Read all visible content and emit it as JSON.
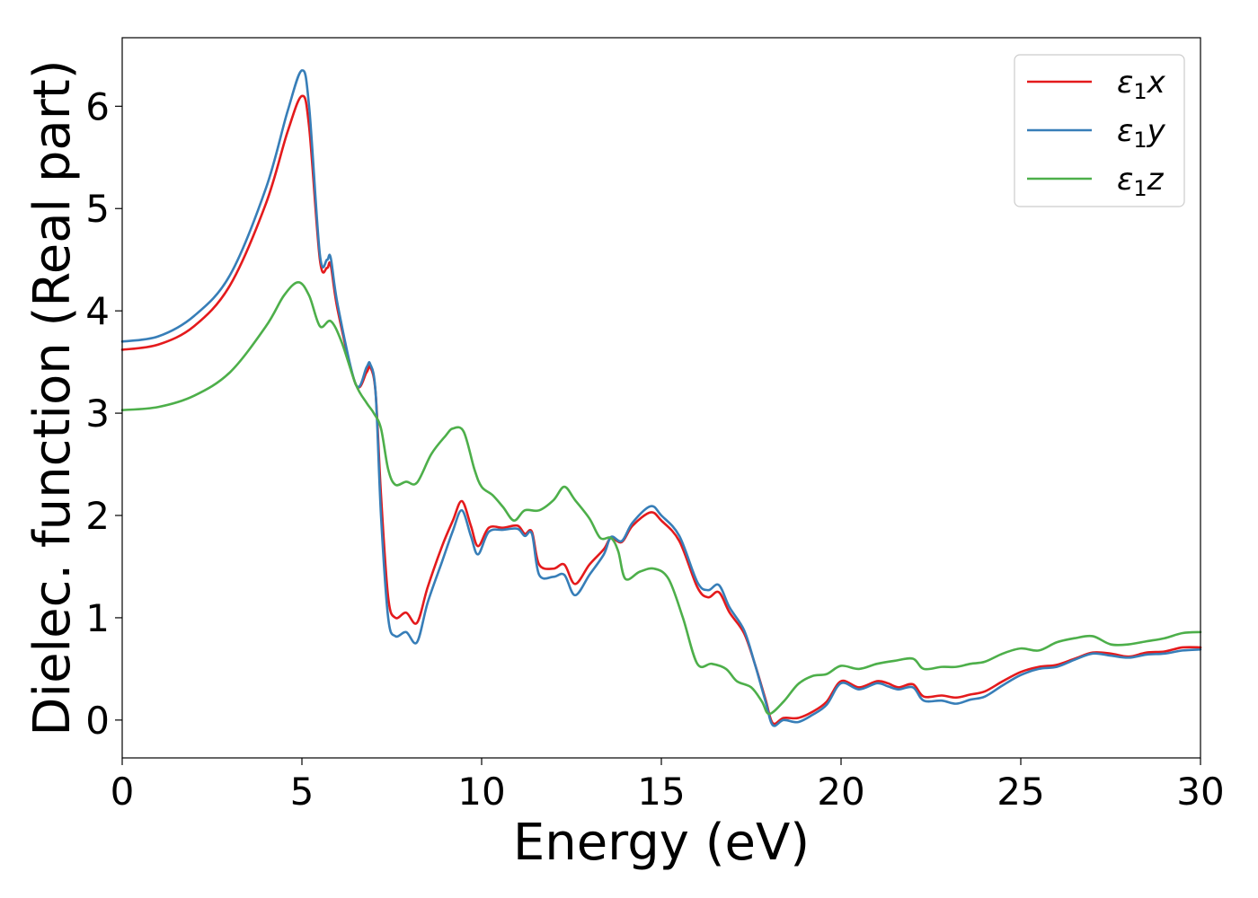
{
  "chart_data": {
    "type": "line",
    "title": "",
    "xlabel": "Energy (eV)",
    "ylabel": "Dielec. function (Real part)",
    "xlim": [
      0,
      30
    ],
    "ylim": [
      -0.37,
      6.67
    ],
    "xticks": [
      0,
      5,
      10,
      15,
      20,
      25,
      30
    ],
    "yticks": [
      0,
      1,
      2,
      3,
      4,
      5,
      6
    ],
    "xtick_labels": [
      "0",
      "5",
      "10",
      "15",
      "20",
      "25",
      "30"
    ],
    "ytick_labels": [
      "0",
      "1",
      "2",
      "3",
      "4",
      "5",
      "6"
    ],
    "grid": false,
    "legend_position": "top-right",
    "series": [
      {
        "name": "ε₁x",
        "legend_base": "ε",
        "legend_sub": "1",
        "legend_var": "x",
        "color": "#e41a1c",
        "points": [
          [
            0,
            3.62
          ],
          [
            1,
            3.67
          ],
          [
            2,
            3.85
          ],
          [
            3,
            4.25
          ],
          [
            4,
            5.05
          ],
          [
            4.6,
            5.75
          ],
          [
            5,
            6.1
          ],
          [
            5.2,
            5.8
          ],
          [
            5.5,
            4.5
          ],
          [
            5.7,
            4.42
          ],
          [
            5.8,
            4.45
          ],
          [
            6,
            4.0
          ],
          [
            6.5,
            3.28
          ],
          [
            6.8,
            3.4
          ],
          [
            6.9,
            3.45
          ],
          [
            7.05,
            3.2
          ],
          [
            7.2,
            2.2
          ],
          [
            7.4,
            1.2
          ],
          [
            7.6,
            1.0
          ],
          [
            7.9,
            1.05
          ],
          [
            8.2,
            0.95
          ],
          [
            8.5,
            1.3
          ],
          [
            8.9,
            1.7
          ],
          [
            9.2,
            1.95
          ],
          [
            9.45,
            2.14
          ],
          [
            9.7,
            1.9
          ],
          [
            9.9,
            1.7
          ],
          [
            10.2,
            1.88
          ],
          [
            10.6,
            1.88
          ],
          [
            11,
            1.9
          ],
          [
            11.2,
            1.82
          ],
          [
            11.4,
            1.84
          ],
          [
            11.6,
            1.52
          ],
          [
            12,
            1.48
          ],
          [
            12.3,
            1.52
          ],
          [
            12.6,
            1.33
          ],
          [
            13,
            1.52
          ],
          [
            13.4,
            1.67
          ],
          [
            13.6,
            1.78
          ],
          [
            13.9,
            1.74
          ],
          [
            14.2,
            1.9
          ],
          [
            14.7,
            2.03
          ],
          [
            15,
            1.95
          ],
          [
            15.5,
            1.75
          ],
          [
            16,
            1.3
          ],
          [
            16.3,
            1.2
          ],
          [
            16.6,
            1.25
          ],
          [
            16.9,
            1.05
          ],
          [
            17.3,
            0.85
          ],
          [
            17.6,
            0.55
          ],
          [
            17.9,
            0.2
          ],
          [
            18.1,
            -0.03
          ],
          [
            18.4,
            0.02
          ],
          [
            18.8,
            0.02
          ],
          [
            19.2,
            0.08
          ],
          [
            19.6,
            0.18
          ],
          [
            20,
            0.38
          ],
          [
            20.5,
            0.32
          ],
          [
            21,
            0.38
          ],
          [
            21.3,
            0.36
          ],
          [
            21.6,
            0.32
          ],
          [
            22,
            0.35
          ],
          [
            22.3,
            0.23
          ],
          [
            22.8,
            0.24
          ],
          [
            23.2,
            0.22
          ],
          [
            23.6,
            0.25
          ],
          [
            24,
            0.28
          ],
          [
            24.5,
            0.38
          ],
          [
            25,
            0.47
          ],
          [
            25.5,
            0.52
          ],
          [
            26,
            0.54
          ],
          [
            26.5,
            0.6
          ],
          [
            27,
            0.66
          ],
          [
            27.5,
            0.65
          ],
          [
            28,
            0.62
          ],
          [
            28.5,
            0.66
          ],
          [
            29,
            0.67
          ],
          [
            29.5,
            0.71
          ],
          [
            30,
            0.71
          ]
        ]
      },
      {
        "name": "ε₁y",
        "legend_base": "ε",
        "legend_sub": "1",
        "legend_var": "y",
        "color": "#377eb8",
        "points": [
          [
            0,
            3.7
          ],
          [
            1,
            3.75
          ],
          [
            2,
            3.95
          ],
          [
            3,
            4.35
          ],
          [
            4,
            5.2
          ],
          [
            4.6,
            5.95
          ],
          [
            5,
            6.35
          ],
          [
            5.2,
            6.0
          ],
          [
            5.5,
            4.55
          ],
          [
            5.7,
            4.5
          ],
          [
            5.8,
            4.52
          ],
          [
            6,
            4.05
          ],
          [
            6.5,
            3.28
          ],
          [
            6.8,
            3.45
          ],
          [
            6.9,
            3.48
          ],
          [
            7.05,
            3.2
          ],
          [
            7.2,
            2.0
          ],
          [
            7.4,
            1.0
          ],
          [
            7.6,
            0.82
          ],
          [
            7.9,
            0.86
          ],
          [
            8.2,
            0.76
          ],
          [
            8.5,
            1.15
          ],
          [
            8.9,
            1.55
          ],
          [
            9.2,
            1.85
          ],
          [
            9.45,
            2.05
          ],
          [
            9.7,
            1.8
          ],
          [
            9.9,
            1.62
          ],
          [
            10.2,
            1.84
          ],
          [
            10.6,
            1.86
          ],
          [
            11,
            1.87
          ],
          [
            11.2,
            1.8
          ],
          [
            11.4,
            1.82
          ],
          [
            11.6,
            1.42
          ],
          [
            12,
            1.4
          ],
          [
            12.3,
            1.42
          ],
          [
            12.6,
            1.22
          ],
          [
            13,
            1.42
          ],
          [
            13.4,
            1.62
          ],
          [
            13.6,
            1.79
          ],
          [
            13.9,
            1.75
          ],
          [
            14.2,
            1.93
          ],
          [
            14.7,
            2.09
          ],
          [
            15,
            2.0
          ],
          [
            15.5,
            1.8
          ],
          [
            16,
            1.35
          ],
          [
            16.3,
            1.27
          ],
          [
            16.6,
            1.32
          ],
          [
            16.9,
            1.1
          ],
          [
            17.3,
            0.88
          ],
          [
            17.6,
            0.55
          ],
          [
            17.9,
            0.18
          ],
          [
            18.1,
            -0.05
          ],
          [
            18.4,
            0.0
          ],
          [
            18.8,
            -0.02
          ],
          [
            19.2,
            0.05
          ],
          [
            19.6,
            0.15
          ],
          [
            20,
            0.36
          ],
          [
            20.5,
            0.3
          ],
          [
            21,
            0.36
          ],
          [
            21.3,
            0.33
          ],
          [
            21.6,
            0.3
          ],
          [
            22,
            0.32
          ],
          [
            22.3,
            0.19
          ],
          [
            22.8,
            0.19
          ],
          [
            23.2,
            0.16
          ],
          [
            23.6,
            0.2
          ],
          [
            24,
            0.23
          ],
          [
            24.5,
            0.34
          ],
          [
            25,
            0.44
          ],
          [
            25.5,
            0.5
          ],
          [
            26,
            0.52
          ],
          [
            26.5,
            0.59
          ],
          [
            27,
            0.65
          ],
          [
            27.5,
            0.63
          ],
          [
            28,
            0.61
          ],
          [
            28.5,
            0.64
          ],
          [
            29,
            0.65
          ],
          [
            29.5,
            0.68
          ],
          [
            30,
            0.69
          ]
        ]
      },
      {
        "name": "ε₁z",
        "legend_base": "ε",
        "legend_sub": "1",
        "legend_var": "z",
        "color": "#4daf4a",
        "points": [
          [
            0,
            3.03
          ],
          [
            1,
            3.06
          ],
          [
            2,
            3.17
          ],
          [
            3,
            3.4
          ],
          [
            4,
            3.85
          ],
          [
            4.5,
            4.15
          ],
          [
            4.9,
            4.28
          ],
          [
            5.2,
            4.15
          ],
          [
            5.5,
            3.85
          ],
          [
            5.8,
            3.9
          ],
          [
            6.1,
            3.7
          ],
          [
            6.5,
            3.28
          ],
          [
            6.8,
            3.1
          ],
          [
            7.0,
            3.0
          ],
          [
            7.2,
            2.85
          ],
          [
            7.4,
            2.45
          ],
          [
            7.6,
            2.3
          ],
          [
            7.9,
            2.33
          ],
          [
            8.2,
            2.32
          ],
          [
            8.6,
            2.6
          ],
          [
            9.0,
            2.78
          ],
          [
            9.2,
            2.85
          ],
          [
            9.5,
            2.82
          ],
          [
            9.8,
            2.45
          ],
          [
            10,
            2.28
          ],
          [
            10.3,
            2.2
          ],
          [
            10.6,
            2.08
          ],
          [
            10.9,
            1.95
          ],
          [
            11.2,
            2.05
          ],
          [
            11.6,
            2.05
          ],
          [
            12,
            2.15
          ],
          [
            12.3,
            2.28
          ],
          [
            12.6,
            2.15
          ],
          [
            13,
            1.97
          ],
          [
            13.3,
            1.78
          ],
          [
            13.6,
            1.78
          ],
          [
            13.8,
            1.65
          ],
          [
            14,
            1.38
          ],
          [
            14.4,
            1.45
          ],
          [
            14.8,
            1.48
          ],
          [
            15.2,
            1.38
          ],
          [
            15.6,
            1.0
          ],
          [
            16,
            0.55
          ],
          [
            16.4,
            0.55
          ],
          [
            16.8,
            0.5
          ],
          [
            17.1,
            0.38
          ],
          [
            17.5,
            0.32
          ],
          [
            17.8,
            0.18
          ],
          [
            18.0,
            0.06
          ],
          [
            18.4,
            0.18
          ],
          [
            18.8,
            0.35
          ],
          [
            19.2,
            0.43
          ],
          [
            19.6,
            0.45
          ],
          [
            20,
            0.53
          ],
          [
            20.5,
            0.5
          ],
          [
            21,
            0.55
          ],
          [
            21.5,
            0.58
          ],
          [
            22,
            0.6
          ],
          [
            22.3,
            0.5
          ],
          [
            22.8,
            0.52
          ],
          [
            23.2,
            0.52
          ],
          [
            23.6,
            0.55
          ],
          [
            24,
            0.57
          ],
          [
            24.5,
            0.65
          ],
          [
            25,
            0.7
          ],
          [
            25.5,
            0.68
          ],
          [
            26,
            0.76
          ],
          [
            26.5,
            0.8
          ],
          [
            27,
            0.82
          ],
          [
            27.5,
            0.74
          ],
          [
            28,
            0.74
          ],
          [
            28.5,
            0.77
          ],
          [
            29,
            0.8
          ],
          [
            29.5,
            0.85
          ],
          [
            30,
            0.86
          ]
        ]
      }
    ]
  }
}
